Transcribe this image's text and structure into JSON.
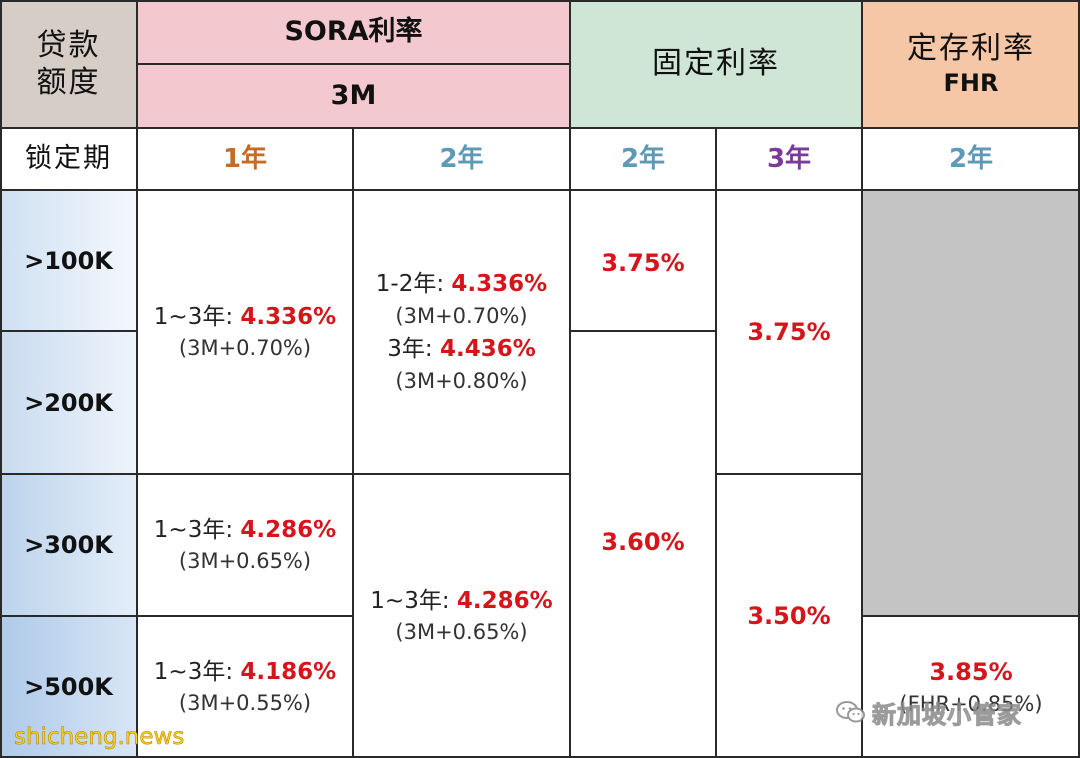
{
  "colors": {
    "loan_header_bg": "#d6cdc6",
    "sora_header_bg": "#f3c8cf",
    "fixed_header_bg": "#cfe6d7",
    "fhr_header_bg": "#f6c7a7",
    "grey_block": "#c4c4c4",
    "rate_red": "#d8141b",
    "year1": "#c66a26",
    "year2": "#5e9ab5",
    "year3": "#7a3a9a"
  },
  "header": {
    "loan_amount": [
      "贷款",
      "额度"
    ],
    "sora": "SORA利率",
    "sora_sub": "3M",
    "fixed": "固定利率",
    "fhr": [
      "定存利率",
      "FHR"
    ]
  },
  "lock_row": {
    "label": "锁定期",
    "years": [
      "1年",
      "2年",
      "2年",
      "3年",
      "2年"
    ]
  },
  "tiers": [
    ">100K",
    ">200K",
    ">300K",
    ">500K"
  ],
  "sora_1y": [
    {
      "prefix": "1~3年: ",
      "rate": "4.336%",
      "spread": "(3M+0.70%)"
    },
    {
      "prefix": "1~3年: ",
      "rate": "4.286%",
      "spread": "(3M+0.65%)"
    },
    {
      "prefix": "1~3年: ",
      "rate": "4.186%",
      "spread": "(3M+0.55%)"
    }
  ],
  "sora_2y": [
    {
      "lines": [
        {
          "prefix": "1-2年: ",
          "rate": "4.336%",
          "spread": "(3M+0.70%)"
        },
        {
          "prefix": "3年: ",
          "rate": "4.436%",
          "spread": "(3M+0.80%)"
        }
      ]
    },
    {
      "prefix": "1~3年: ",
      "rate": "4.286%",
      "spread": "(3M+0.65%)"
    }
  ],
  "fixed_2y": [
    "3.75%",
    "3.60%"
  ],
  "fixed_3y": [
    "3.75%",
    "3.50%"
  ],
  "fhr_2y": {
    "rate": "3.85%",
    "spread": "(FHR+0.85%)"
  },
  "watermarks": {
    "brand": "新加坡小管家",
    "site": "shicheng.news"
  }
}
